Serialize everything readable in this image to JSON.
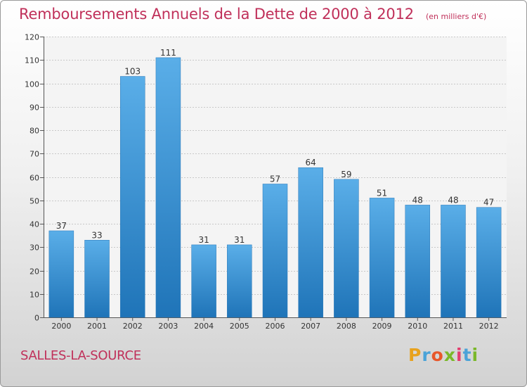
{
  "header": {
    "title": "Remboursements Annuels de la Dette de 2000 à 2012",
    "unit": "(en milliers d'€)"
  },
  "footer": {
    "town": "SALLES-LA-SOURCE",
    "brand_letters": [
      "P",
      "r",
      "o",
      "x",
      "i",
      "t",
      "i"
    ],
    "brand_colors": [
      "#e8a21d",
      "#4aa3d8",
      "#e8572a",
      "#7ab829",
      "#e33d6e",
      "#4aa3d8",
      "#7ab829"
    ]
  },
  "colors": {
    "title": "#c0305a",
    "bar_light": "#5aaee8",
    "bar_dark": "#1f74b8",
    "grid": "#c8c8c8",
    "axis": "#555555"
  },
  "chart_data": {
    "type": "bar",
    "categories": [
      "2000",
      "2001",
      "2002",
      "2003",
      "2004",
      "2005",
      "2006",
      "2007",
      "2008",
      "2009",
      "2010",
      "2011",
      "2012"
    ],
    "values": [
      37,
      33,
      103,
      111,
      31,
      31,
      57,
      64,
      59,
      51,
      48,
      48,
      47
    ],
    "title": "Remboursements Annuels de la Dette de 2000 à 2012",
    "xlabel": "",
    "ylabel": "",
    "ylim": [
      0,
      120
    ],
    "yticks": [
      0,
      10,
      20,
      30,
      40,
      50,
      60,
      70,
      80,
      90,
      100,
      110,
      120
    ],
    "grid": true,
    "data_labels": true
  }
}
